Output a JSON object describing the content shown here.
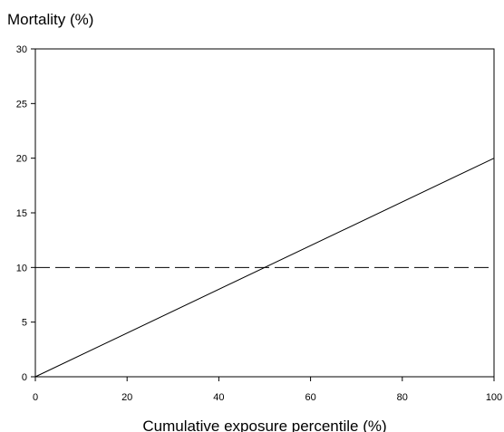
{
  "chart_data": {
    "type": "line",
    "title": "",
    "xlabel": "Cumulative exposure percentile (%)",
    "ylabel": "Mortality (%)",
    "xlim": [
      0,
      100
    ],
    "ylim": [
      0,
      30
    ],
    "xticks": [
      0,
      20,
      40,
      60,
      80,
      100
    ],
    "yticks": [
      0,
      5,
      10,
      15,
      20,
      25,
      30
    ],
    "grid": false,
    "legend": "none",
    "series": [
      {
        "style": "solid",
        "color": "#000000",
        "points": [
          [
            0,
            0
          ],
          [
            100,
            20
          ]
        ]
      },
      {
        "style": "dashed",
        "color": "#000000",
        "points": [
          [
            0,
            10
          ],
          [
            100,
            10
          ]
        ]
      }
    ]
  }
}
